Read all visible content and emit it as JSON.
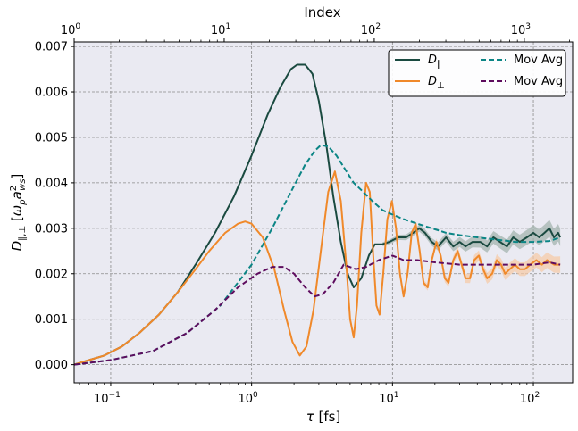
{
  "chart_data": {
    "type": "line",
    "xlabel": "τ [fs]",
    "ylabel": "D∥,⊥ [ωₚa²ws]",
    "top_xlabel": "Index",
    "x_scale": "log",
    "top_x_scale": "log",
    "xlim": [
      0.055,
      190
    ],
    "top_xlim": [
      1,
      2100
    ],
    "ylim": [
      -0.0004,
      0.0071
    ],
    "grid": true,
    "legend_position": "top-right",
    "x_ticks": [
      {
        "v": 0.1,
        "b": "10",
        "e": "−1"
      },
      {
        "v": 1,
        "b": "10",
        "e": "0"
      },
      {
        "v": 10,
        "b": "10",
        "e": "1"
      },
      {
        "v": 100,
        "b": "10",
        "e": "2"
      }
    ],
    "top_ticks": [
      {
        "v": 1,
        "b": "10",
        "e": "0"
      },
      {
        "v": 10,
        "b": "10",
        "e": "1"
      },
      {
        "v": 100,
        "b": "10",
        "e": "2"
      },
      {
        "v": 1000,
        "b": "10",
        "e": "3"
      }
    ],
    "y_ticks": [
      "0.000",
      "0.001",
      "0.002",
      "0.003",
      "0.004",
      "0.005",
      "0.006",
      "0.007"
    ],
    "legend": [
      {
        "main": "D",
        "sub": "∥",
        "color": "#1a4a40",
        "dash": "solid"
      },
      {
        "main": "D",
        "sub": "⊥",
        "color": "#f0892a",
        "dash": "solid"
      },
      {
        "main": "Mov Avg",
        "sub": "",
        "color": "#0b8585",
        "dash": "dashed"
      },
      {
        "main": "Mov Avg",
        "sub": "",
        "color": "#5e0c5e",
        "dash": "dashed"
      }
    ],
    "series": [
      {
        "color": "#1a4a40",
        "style": "solid",
        "band_color": "#9fb0ab",
        "band_from_x": 8,
        "points": [
          [
            0.055,
            0.0
          ],
          [
            0.07,
            0.0001
          ],
          [
            0.09,
            0.0002
          ],
          [
            0.12,
            0.0004
          ],
          [
            0.16,
            0.0007
          ],
          [
            0.22,
            0.0011
          ],
          [
            0.3,
            0.0016
          ],
          [
            0.4,
            0.0022
          ],
          [
            0.55,
            0.0029
          ],
          [
            0.75,
            0.0037
          ],
          [
            1.0,
            0.0046
          ],
          [
            1.3,
            0.0055
          ],
          [
            1.6,
            0.0061
          ],
          [
            1.9,
            0.0065
          ],
          [
            2.1,
            0.0066
          ],
          [
            2.4,
            0.0066
          ],
          [
            2.7,
            0.0064
          ],
          [
            3.0,
            0.0058
          ],
          [
            3.4,
            0.0048
          ],
          [
            3.8,
            0.0037
          ],
          [
            4.3,
            0.0027
          ],
          [
            4.8,
            0.002
          ],
          [
            5.3,
            0.0017
          ],
          [
            6.0,
            0.0019
          ],
          [
            6.8,
            0.0024
          ],
          [
            7.5,
            0.00265
          ],
          [
            8.5,
            0.00265
          ],
          [
            9.5,
            0.0027
          ],
          [
            11,
            0.0028
          ],
          [
            12.5,
            0.0028
          ],
          [
            14,
            0.0029
          ],
          [
            15.5,
            0.003
          ],
          [
            17,
            0.0029
          ],
          [
            19,
            0.0027
          ],
          [
            21,
            0.0026
          ],
          [
            24,
            0.0028
          ],
          [
            27,
            0.0026
          ],
          [
            30,
            0.0027
          ],
          [
            33,
            0.0026
          ],
          [
            37,
            0.0027
          ],
          [
            42,
            0.0027
          ],
          [
            47,
            0.0026
          ],
          [
            52,
            0.0028
          ],
          [
            58,
            0.0027
          ],
          [
            65,
            0.0026
          ],
          [
            72,
            0.0028
          ],
          [
            80,
            0.0027
          ],
          [
            90,
            0.0028
          ],
          [
            100,
            0.0029
          ],
          [
            110,
            0.0028
          ],
          [
            120,
            0.0029
          ],
          [
            130,
            0.003
          ],
          [
            140,
            0.0028
          ],
          [
            150,
            0.0029
          ],
          [
            155,
            0.0028
          ]
        ]
      },
      {
        "color": "#f0892a",
        "style": "solid",
        "band_color": "#f6c9a4",
        "band_from_x": 10,
        "points": [
          [
            0.055,
            0.0
          ],
          [
            0.07,
            0.0001
          ],
          [
            0.09,
            0.0002
          ],
          [
            0.12,
            0.0004
          ],
          [
            0.16,
            0.0007
          ],
          [
            0.22,
            0.0011
          ],
          [
            0.3,
            0.0016
          ],
          [
            0.4,
            0.0021
          ],
          [
            0.5,
            0.0025
          ],
          [
            0.65,
            0.0029
          ],
          [
            0.8,
            0.0031
          ],
          [
            0.9,
            0.00315
          ],
          [
            1.0,
            0.0031
          ],
          [
            1.2,
            0.0028
          ],
          [
            1.45,
            0.0021
          ],
          [
            1.7,
            0.0012
          ],
          [
            1.95,
            0.0005
          ],
          [
            2.2,
            0.0002
          ],
          [
            2.45,
            0.0004
          ],
          [
            2.75,
            0.0012
          ],
          [
            3.1,
            0.0025
          ],
          [
            3.5,
            0.0038
          ],
          [
            3.9,
            0.00425
          ],
          [
            4.3,
            0.0036
          ],
          [
            4.7,
            0.0022
          ],
          [
            5.0,
            0.001
          ],
          [
            5.3,
            0.0006
          ],
          [
            5.6,
            0.0013
          ],
          [
            6.0,
            0.0029
          ],
          [
            6.5,
            0.004
          ],
          [
            6.9,
            0.0038
          ],
          [
            7.3,
            0.0024
          ],
          [
            7.7,
            0.0013
          ],
          [
            8.1,
            0.0011
          ],
          [
            8.6,
            0.002
          ],
          [
            9.2,
            0.0032
          ],
          [
            9.9,
            0.0036
          ],
          [
            10.6,
            0.003
          ],
          [
            11.3,
            0.002
          ],
          [
            12,
            0.0015
          ],
          [
            12.8,
            0.002
          ],
          [
            13.7,
            0.0029
          ],
          [
            14.6,
            0.0031
          ],
          [
            15.6,
            0.0025
          ],
          [
            16.6,
            0.0018
          ],
          [
            17.8,
            0.0017
          ],
          [
            19,
            0.0023
          ],
          [
            20.5,
            0.0027
          ],
          [
            22,
            0.0024
          ],
          [
            23.5,
            0.0019
          ],
          [
            25,
            0.0018
          ],
          [
            27,
            0.0023
          ],
          [
            29,
            0.0025
          ],
          [
            31,
            0.0022
          ],
          [
            33,
            0.0019
          ],
          [
            35.5,
            0.0019
          ],
          [
            38,
            0.0023
          ],
          [
            41,
            0.0024
          ],
          [
            44,
            0.0021
          ],
          [
            47,
            0.0019
          ],
          [
            51,
            0.002
          ],
          [
            55,
            0.0023
          ],
          [
            59,
            0.0022
          ],
          [
            63,
            0.002
          ],
          [
            68,
            0.0021
          ],
          [
            74,
            0.0022
          ],
          [
            80,
            0.0021
          ],
          [
            87,
            0.0021
          ],
          [
            95,
            0.0022
          ],
          [
            105,
            0.0023
          ],
          [
            115,
            0.0022
          ],
          [
            125,
            0.0023
          ],
          [
            140,
            0.0022
          ],
          [
            155,
            0.0022
          ]
        ]
      },
      {
        "color": "#0b8585",
        "style": "dashed",
        "points": [
          [
            0.055,
            0.0
          ],
          [
            0.1,
            0.0001
          ],
          [
            0.2,
            0.0003
          ],
          [
            0.35,
            0.0007
          ],
          [
            0.6,
            0.0013
          ],
          [
            1.0,
            0.0022
          ],
          [
            1.4,
            0.003
          ],
          [
            1.9,
            0.0038
          ],
          [
            2.4,
            0.0044
          ],
          [
            2.8,
            0.0047
          ],
          [
            3.1,
            0.00483
          ],
          [
            3.5,
            0.0048
          ],
          [
            4.0,
            0.0046
          ],
          [
            4.6,
            0.0043
          ],
          [
            5.3,
            0.004
          ],
          [
            6.2,
            0.0038
          ],
          [
            7.2,
            0.0036
          ],
          [
            8.5,
            0.0034
          ],
          [
            10,
            0.0033
          ],
          [
            12,
            0.0032
          ],
          [
            15,
            0.0031
          ],
          [
            19,
            0.003
          ],
          [
            24,
            0.0029
          ],
          [
            30,
            0.00285
          ],
          [
            40,
            0.0028
          ],
          [
            55,
            0.00275
          ],
          [
            75,
            0.0027
          ],
          [
            100,
            0.0027
          ],
          [
            130,
            0.00272
          ],
          [
            155,
            0.0028
          ]
        ]
      },
      {
        "color": "#5e0c5e",
        "style": "dashed",
        "points": [
          [
            0.055,
            0.0
          ],
          [
            0.1,
            0.0001
          ],
          [
            0.2,
            0.0003
          ],
          [
            0.35,
            0.0007
          ],
          [
            0.55,
            0.0012
          ],
          [
            0.8,
            0.0017
          ],
          [
            1.1,
            0.002
          ],
          [
            1.4,
            0.00215
          ],
          [
            1.7,
            0.00215
          ],
          [
            2.0,
            0.002
          ],
          [
            2.4,
            0.0017
          ],
          [
            2.8,
            0.0015
          ],
          [
            3.2,
            0.00155
          ],
          [
            3.8,
            0.0018
          ],
          [
            4.5,
            0.0022
          ],
          [
            5.5,
            0.0021
          ],
          [
            6.5,
            0.00215
          ],
          [
            8,
            0.0023
          ],
          [
            10,
            0.0024
          ],
          [
            12,
            0.0023
          ],
          [
            15,
            0.0023
          ],
          [
            20,
            0.00225
          ],
          [
            30,
            0.0022
          ],
          [
            45,
            0.0022
          ],
          [
            70,
            0.0022
          ],
          [
            100,
            0.0022
          ],
          [
            130,
            0.00225
          ],
          [
            155,
            0.0022
          ]
        ]
      }
    ]
  }
}
